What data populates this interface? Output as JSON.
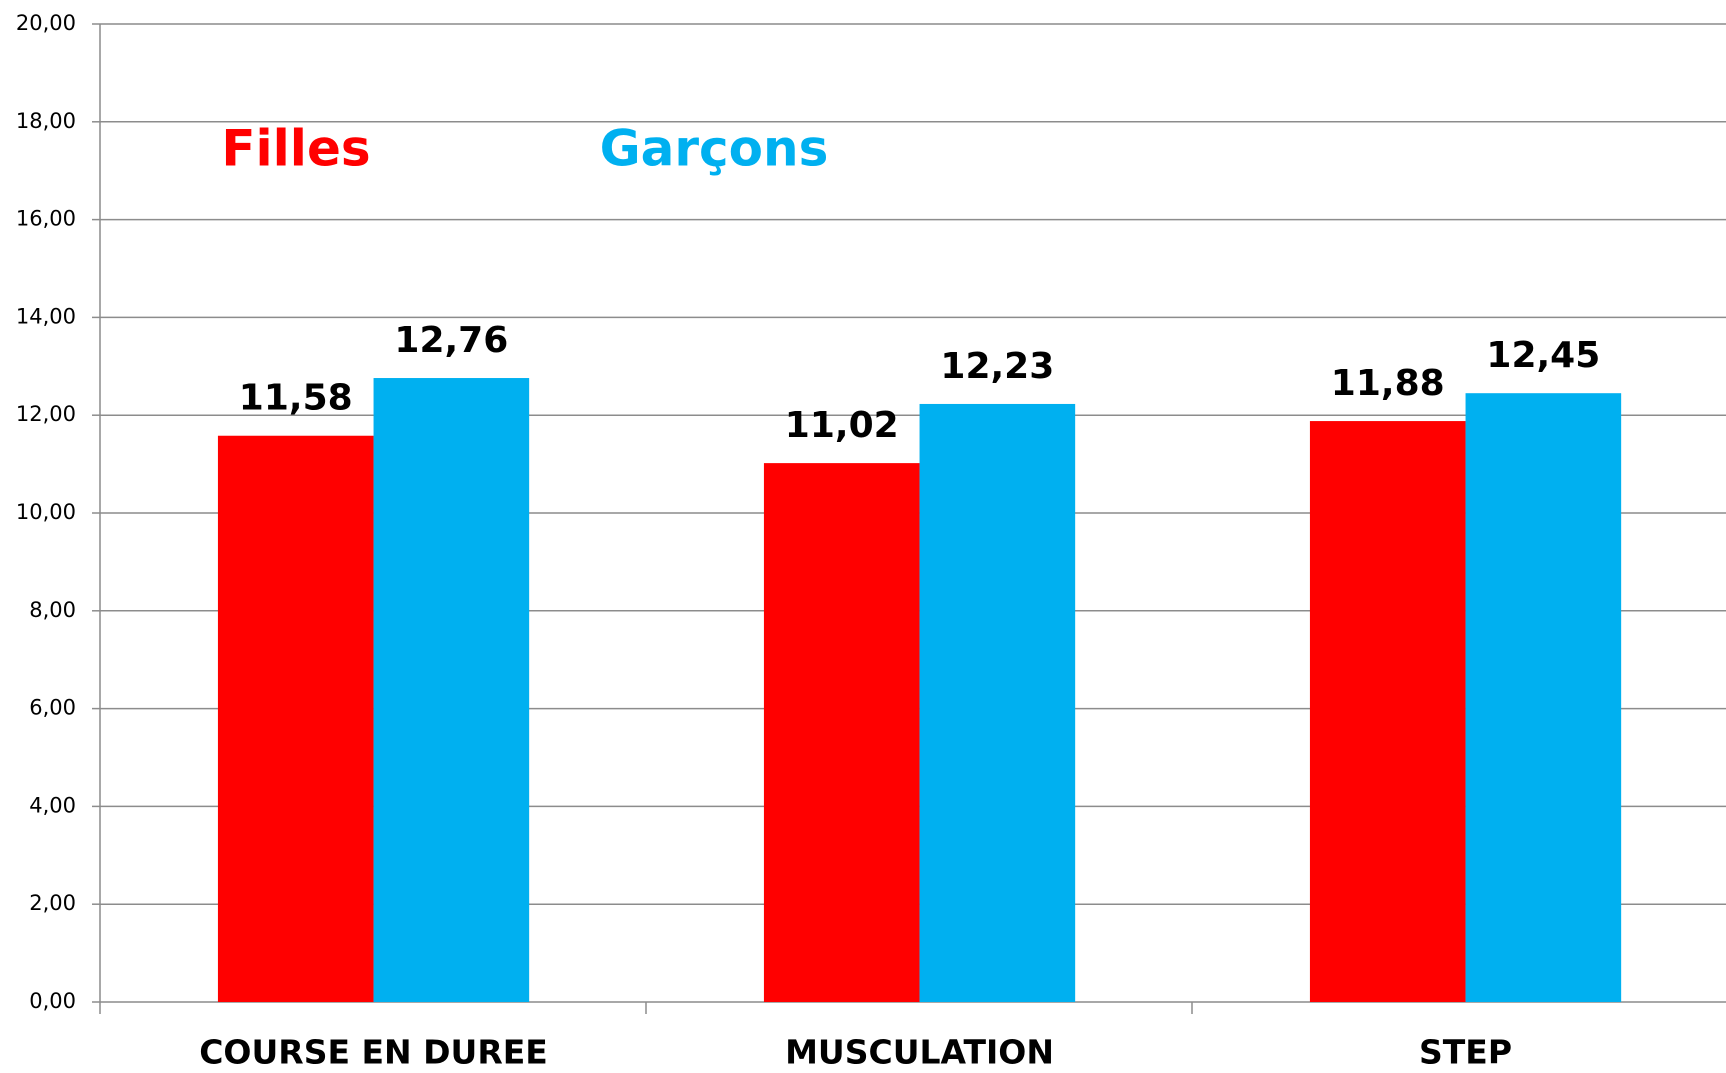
{
  "chart_data": {
    "type": "bar",
    "categories": [
      "COURSE EN DUREE",
      "MUSCULATION",
      "STEP"
    ],
    "series": [
      {
        "name": "Filles",
        "color": "#ff0000",
        "values": [
          11.58,
          11.02,
          11.88
        ],
        "value_labels": [
          "11,58",
          "11,02",
          "11,88"
        ]
      },
      {
        "name": "Garçons",
        "color": "#00b0f0",
        "values": [
          12.76,
          12.23,
          12.45
        ],
        "value_labels": [
          "12,76",
          "12,23",
          "12,45"
        ]
      }
    ],
    "ylim": [
      0,
      20
    ],
    "yticks": [
      {
        "value": 0,
        "label": "0,00"
      },
      {
        "value": 2,
        "label": "2,00"
      },
      {
        "value": 4,
        "label": "4,00"
      },
      {
        "value": 6,
        "label": "6,00"
      },
      {
        "value": 8,
        "label": "8,00"
      },
      {
        "value": 10,
        "label": "10,00"
      },
      {
        "value": 12,
        "label": "12,00"
      },
      {
        "value": 14,
        "label": "14,00"
      },
      {
        "value": 16,
        "label": "16,00"
      },
      {
        "value": 18,
        "label": "18,00"
      },
      {
        "value": 20,
        "label": "20,00"
      }
    ],
    "grid": true
  }
}
